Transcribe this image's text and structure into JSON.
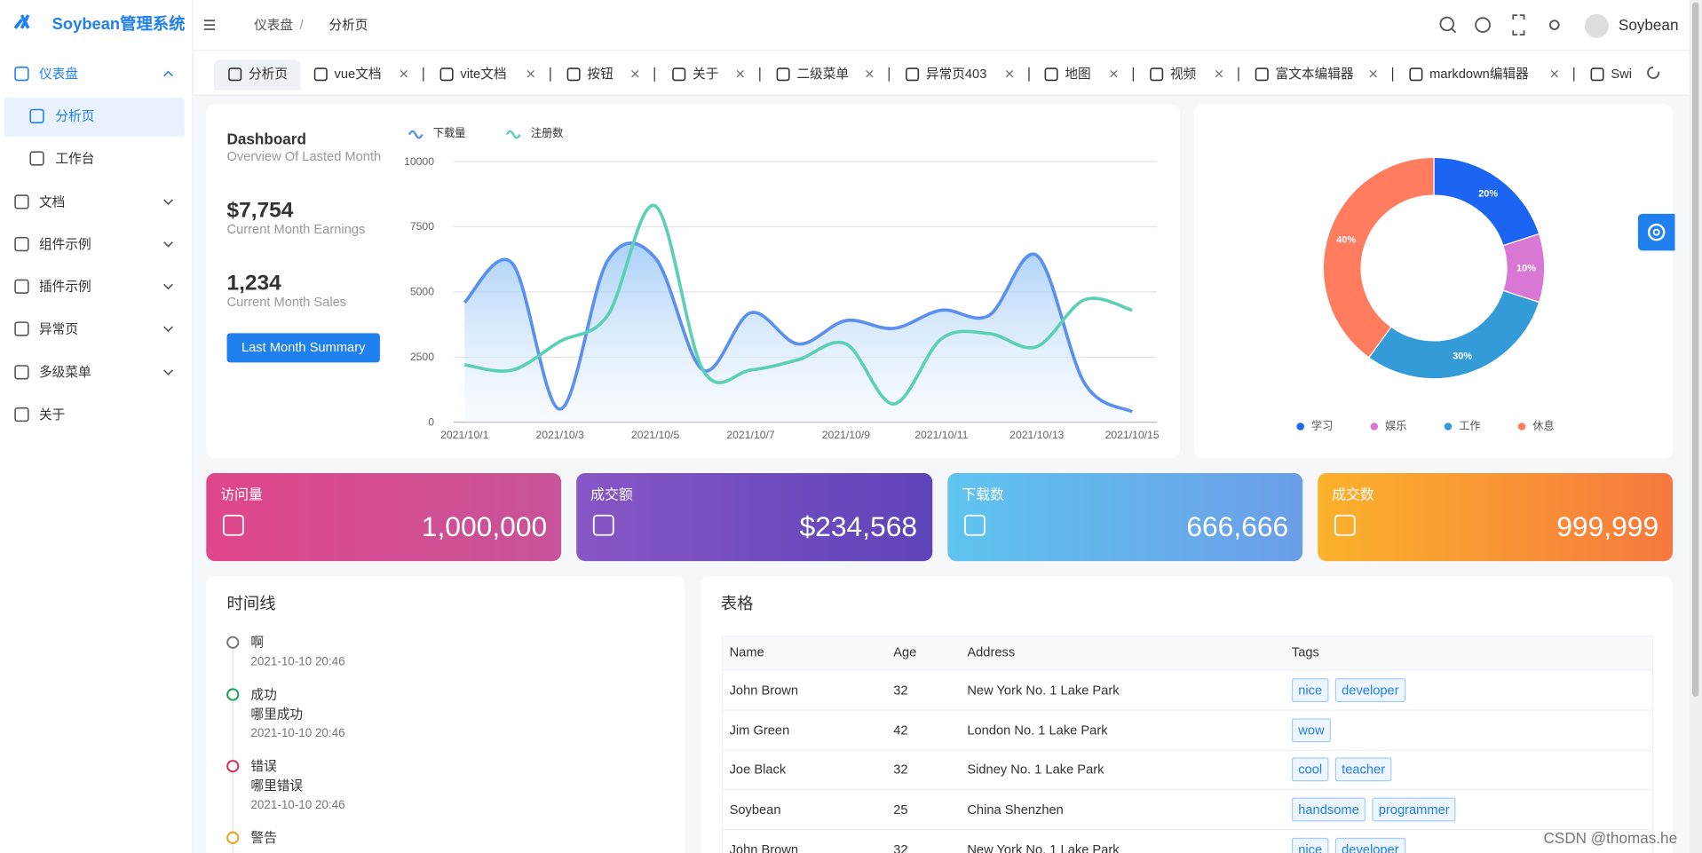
{
  "sidebar": {
    "logo": "Soybean管理系统",
    "menu": [
      "仪表盘",
      "分析页",
      "工作台",
      "文档",
      "组件示例",
      "插件示例",
      "异常页",
      "多级菜单",
      "关于"
    ]
  },
  "header": {
    "breadcrumb": [
      "仪表盘",
      "分析页"
    ],
    "user": "Soybean"
  },
  "tabs": [
    "分析页",
    "vue文档",
    "vite文档",
    "按钮",
    "关于",
    "二级菜单",
    "异常页403",
    "地图",
    "视频",
    "富文本编辑器",
    "markdown编辑器",
    "Swi"
  ],
  "dashboard": {
    "title": "Dashboard",
    "subtitle": "Overview Of Lasted Month",
    "stats": [
      {
        "value": "$7,754",
        "label": "Current Month Earnings"
      },
      {
        "value": "1,234",
        "label": "Current Month Sales"
      }
    ],
    "button": "Last Month Summary"
  },
  "chart_data": [
    {
      "type": "line",
      "categories": [
        "2021/10/1",
        null,
        "2021/10/3",
        null,
        "2021/10/5",
        null,
        "2021/10/7",
        null,
        "2021/10/9",
        null,
        "2021/10/11",
        null,
        "2021/10/13",
        null,
        "2021/10/15"
      ],
      "series": [
        {
          "name": "下载量",
          "color": "#5b8ff0",
          "values": [
            4600,
            6100,
            500,
            6200,
            6300,
            2000,
            4200,
            3000,
            3900,
            3600,
            4300,
            4100,
            6400,
            1500,
            400
          ]
        },
        {
          "name": "注册数",
          "color": "#5cd0b3",
          "values": [
            2200,
            2000,
            3100,
            4100,
            8300,
            2000,
            2000,
            2400,
            3000,
            700,
            3200,
            3400,
            2900,
            4700,
            4300
          ]
        }
      ],
      "ylim": [
        0,
        10000
      ],
      "yticks": [
        0,
        2500,
        5000,
        7500,
        10000
      ],
      "grid": true,
      "area": true
    },
    {
      "type": "pie",
      "categories": [
        "学习",
        "娱乐",
        "工作",
        "休息"
      ],
      "values": [
        20,
        10,
        30,
        40
      ],
      "value_labels": [
        "20%",
        "10%",
        "30%",
        "40%"
      ],
      "colors": [
        "#1c64f2",
        "#d877d4",
        "#339bd8",
        "#ff7c5f"
      ],
      "donut": true
    }
  ],
  "cards": [
    {
      "title": "访问量",
      "value": "1,000,000"
    },
    {
      "title": "成交额",
      "value": "$234,568"
    },
    {
      "title": "下载数",
      "value": "666,666"
    },
    {
      "title": "成交数",
      "value": "999,999"
    }
  ],
  "timeline": {
    "title": "时间线",
    "items": [
      {
        "title": "啊",
        "time": "2021-10-10 20:46"
      },
      {
        "title": "成功",
        "desc": "哪里成功",
        "time": "2021-10-10 20:46"
      },
      {
        "title": "错误",
        "desc": "哪里错误",
        "time": "2021-10-10 20:46"
      },
      {
        "title": "警告"
      }
    ]
  },
  "table": {
    "title": "表格",
    "columns": [
      "Name",
      "Age",
      "Address",
      "Tags"
    ],
    "rows": [
      [
        "John Brown",
        32,
        "New York No. 1 Lake Park",
        [
          "nice",
          "developer"
        ]
      ],
      [
        "Jim Green",
        42,
        "London No. 1 Lake Park",
        [
          "wow"
        ]
      ],
      [
        "Joe Black",
        32,
        "Sidney No. 1 Lake Park",
        [
          "cool",
          "teacher"
        ]
      ],
      [
        "Soybean",
        25,
        "China Shenzhen",
        [
          "handsome",
          "programmer"
        ]
      ],
      [
        "John Brown",
        32,
        "New York No. 1 Lake Park",
        [
          "nice",
          "developer"
        ]
      ]
    ]
  },
  "watermark": "CSDN @thomas.he"
}
